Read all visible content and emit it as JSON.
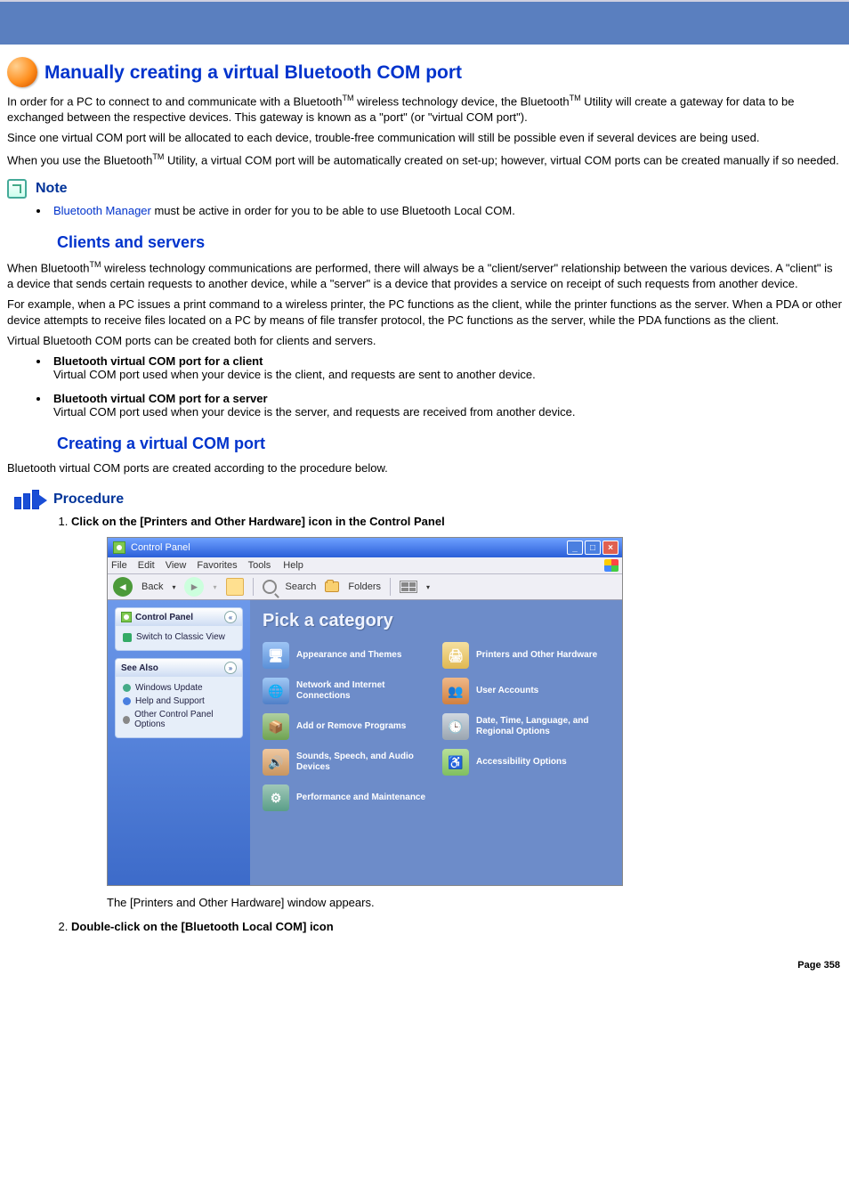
{
  "page": {
    "title": "Manually creating a virtual Bluetooth COM port",
    "intro_html": "In order for a PC to connect to and communicate with a Bluetooth<span class=\"tm\">TM</span> wireless technology device, the Bluetooth<span class=\"tm\">TM</span> Utility will create a gateway for data to be exchanged between the respective devices. This gateway is known as a \"port\" (or \"virtual COM port\").",
    "p2": "Since one virtual COM port will be allocated to each device, trouble-free communication will still be possible even if several devices are being used.",
    "p3_html": "When you use the Bluetooth<span class=\"tm\">TM</span> Utility, a virtual COM port will be automatically created on set-up; however, virtual COM ports can be created manually if so needed.",
    "note_label": "Note",
    "note_link": "Bluetooth Manager",
    "note_rest": " must be active in order for you to be able to use Bluetooth Local COM.",
    "h2_clients": "Clients and servers",
    "clients_p1_html": "When Bluetooth<span class=\"tm\">TM</span> wireless technology communications are performed, there will always be a \"client/server\" relationship between the various devices. A \"client\" is a device that sends certain requests to another device, while a \"server\" is a device that provides a service on receipt of such requests from another device.",
    "clients_p2": "For example, when a PC issues a print command to a wireless printer, the PC functions as the client, while the printer functions as the server. When a PDA or other device attempts to receive files located on a PC by means of file transfer protocol, the PC functions as the server, while the PDA functions as the client.",
    "clients_p3": "Virtual Bluetooth COM ports can be created both for clients and servers.",
    "bullets": [
      {
        "title": "Bluetooth virtual COM port for a client",
        "desc": "Virtual COM port used when your device is the client, and requests are sent to another device."
      },
      {
        "title": "Bluetooth virtual COM port for a server",
        "desc": "Virtual COM port used when your device is the server, and requests are received from another device."
      }
    ],
    "h2_creating": "Creating a virtual COM port",
    "creating_p": "Bluetooth virtual COM ports are created according to the procedure below.",
    "procedure_label": "Procedure",
    "steps": [
      {
        "title": "Click on the [Printers and Other Hardware] icon in the Control Panel",
        "after": "The [Printers and Other Hardware] window appears."
      },
      {
        "title": "Double-click on the [Bluetooth Local COM] icon"
      }
    ],
    "page_number": "Page 358"
  },
  "screenshot": {
    "window_title": "Control Panel",
    "menu": [
      "File",
      "Edit",
      "View",
      "Favorites",
      "Tools",
      "Help"
    ],
    "toolbar": {
      "back": "Back",
      "search": "Search",
      "folders": "Folders"
    },
    "sidebar": {
      "panel1_title": "Control Panel",
      "switch_link": "Switch to Classic View",
      "panel2_title": "See Also",
      "see_also": [
        "Windows Update",
        "Help and Support",
        "Other Control Panel Options"
      ]
    },
    "content_heading": "Pick a category",
    "categories": [
      {
        "icon": "theme",
        "label": "Appearance and Themes"
      },
      {
        "icon": "print",
        "label": "Printers and Other Hardware"
      },
      {
        "icon": "net",
        "label": "Network and Internet Connections"
      },
      {
        "icon": "user",
        "label": "User Accounts"
      },
      {
        "icon": "add",
        "label": "Add or Remove Programs"
      },
      {
        "icon": "date",
        "label": "Date, Time, Language, and Regional Options"
      },
      {
        "icon": "snd",
        "label": "Sounds, Speech, and Audio Devices"
      },
      {
        "icon": "acc",
        "label": "Accessibility Options"
      },
      {
        "icon": "perf",
        "label": "Performance and Maintenance"
      }
    ],
    "colors": {
      "titlebar_start": "#6ea0ff",
      "titlebar_end": "#2a5fd8",
      "content_bg": "#6d8cc9",
      "sidebar_bg": "#3d6bc9"
    }
  }
}
